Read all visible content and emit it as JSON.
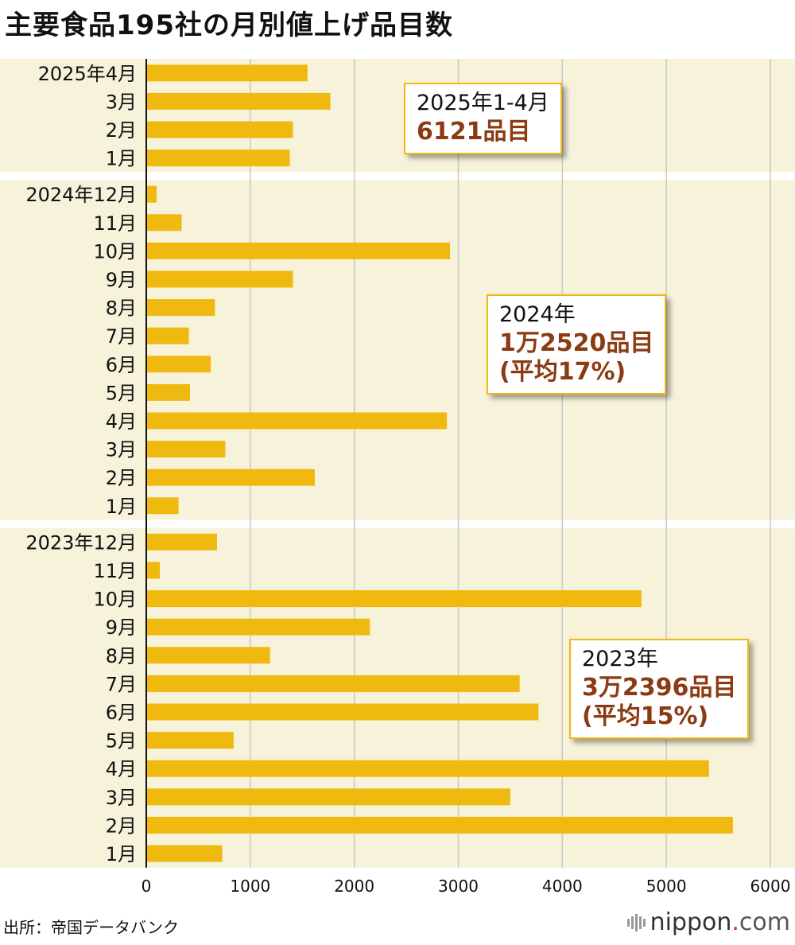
{
  "title": "主要食品195社の月別値上げ品目数",
  "source": "出所：帝国データバンク",
  "logo": {
    "text": "nippon",
    "dot": ".",
    "com": "com"
  },
  "colors": {
    "background_band": "#f7f2da",
    "bar": "#f0b90f",
    "grid": "#c8c8c8",
    "callout_value": "#8b3a12"
  },
  "callouts": [
    {
      "line1": "2025年1-4月",
      "line2": "6121品目",
      "line3": ""
    },
    {
      "line1": "2024年",
      "line2": "1万2520品目",
      "line3": "(平均17%)"
    },
    {
      "line1": "2023年",
      "line2": "3万2396品目",
      "line3": "(平均15%)"
    }
  ],
  "chart_data": {
    "type": "bar",
    "orientation": "horizontal",
    "title": "主要食品195社の月別値上げ品目数",
    "xlim": [
      0,
      6000
    ],
    "xticks": [
      "0",
      "1000",
      "2000",
      "3000",
      "4000",
      "5000",
      "6000"
    ],
    "grid": true,
    "categories": [
      "2025年4月",
      "3月",
      "2月",
      "1月",
      "2024年12月",
      "11月",
      "10月",
      "9月",
      "8月",
      "7月",
      "6月",
      "5月",
      "4月",
      "3月",
      "2月",
      "1月",
      "2023年12月",
      "11月",
      "10月",
      "9月",
      "8月",
      "7月",
      "6月",
      "5月",
      "4月",
      "3月",
      "2月",
      "1月"
    ],
    "values": [
      1550,
      1770,
      1410,
      1380,
      100,
      340,
      2920,
      1410,
      660,
      410,
      620,
      420,
      2890,
      760,
      1620,
      310,
      680,
      130,
      4760,
      2150,
      1190,
      3590,
      3770,
      840,
      5410,
      3500,
      5640,
      730
    ],
    "groups": [
      {
        "label": "2025",
        "count": 4
      },
      {
        "label": "2024",
        "count": 12
      },
      {
        "label": "2023",
        "count": 12
      }
    ]
  }
}
